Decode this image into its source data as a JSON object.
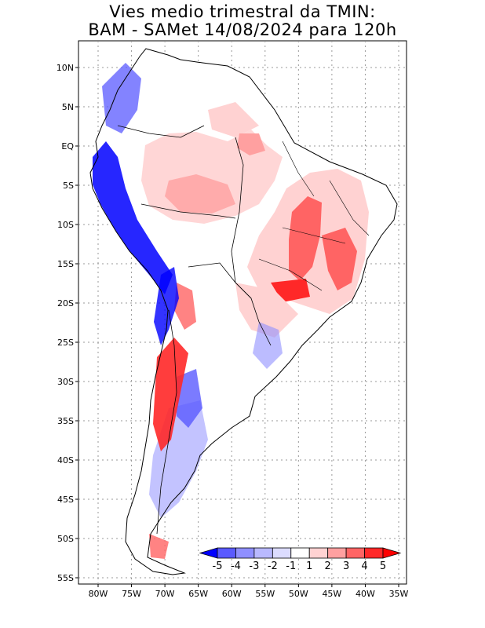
{
  "header": {
    "title_line1": "Vies medio trimestral da TMIN:",
    "title_line2": "BAM - SAMet 14/08/2024  para 120h"
  },
  "axes": {
    "lat_labels": [
      "10N",
      "5N",
      "EQ",
      "5S",
      "10S",
      "15S",
      "20S",
      "25S",
      "30S",
      "35S",
      "40S",
      "45S",
      "50S",
      "55S"
    ],
    "lon_labels": [
      "80W",
      "75W",
      "70W",
      "65W",
      "60W",
      "55W",
      "50W",
      "45W",
      "40W",
      "35W"
    ]
  },
  "colorbar": {
    "labels": [
      "-5",
      "-4",
      "-3",
      "-2",
      "-1",
      "1",
      "2",
      "3",
      "4",
      "5"
    ],
    "colors": [
      "#0000ff",
      "#5a5aff",
      "#8f8fff",
      "#b9b9ff",
      "#dcdcff",
      "#ffffff",
      "#ffd2d2",
      "#ffa0a0",
      "#ff6464",
      "#ff2828",
      "#ff0000"
    ]
  },
  "map": {
    "projection": "lat-lon",
    "lon_range": [
      -83,
      -35
    ],
    "lat_range": [
      -56,
      13
    ],
    "gridlines": "dotted"
  }
}
